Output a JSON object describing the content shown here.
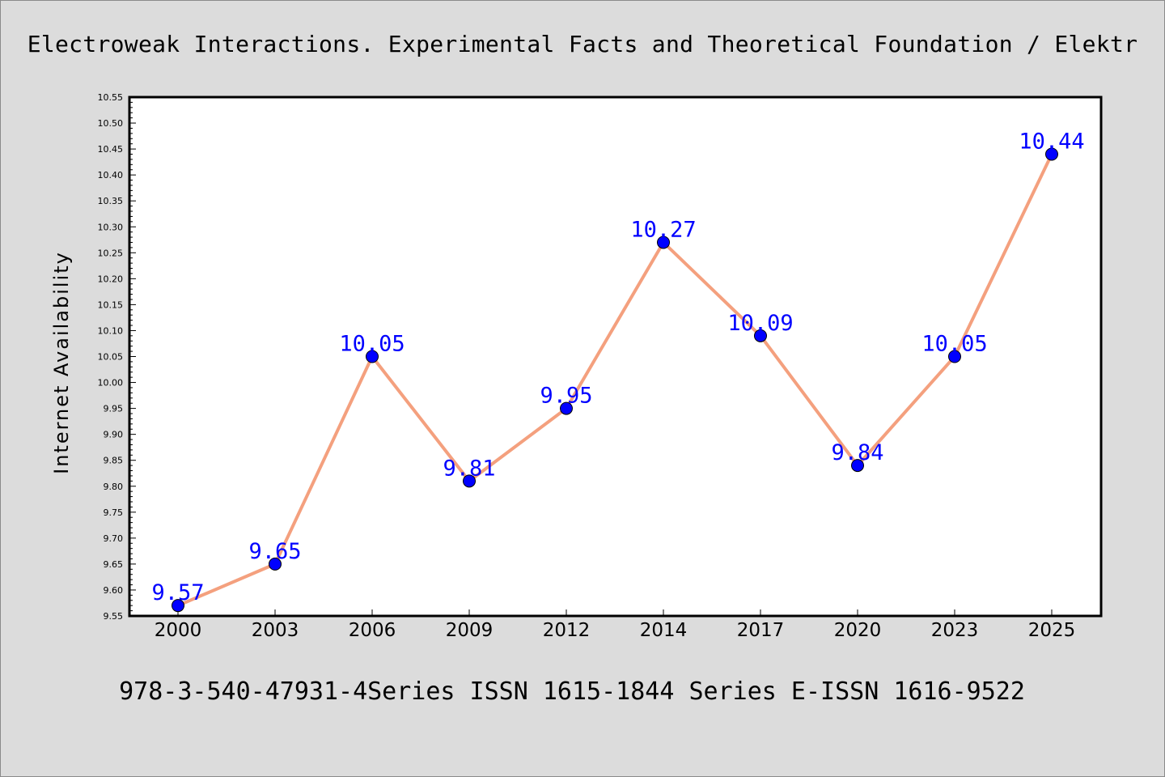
{
  "chart_data": {
    "type": "line",
    "title": "Electroweak Interactions. Experimental Facts and Theoretical Foundation / Elektr",
    "footer": "978-3-540-47931-4Series ISSN 1615-1844 Series E-ISSN 1616-9522",
    "xlabel": "",
    "ylabel": "Internet Availability",
    "categories": [
      "2000",
      "2003",
      "2006",
      "2009",
      "2012",
      "2014",
      "2017",
      "2020",
      "2023",
      "2025"
    ],
    "series": [
      {
        "values": [
          9.57,
          9.65,
          10.05,
          9.81,
          9.95,
          10.27,
          10.09,
          9.84,
          10.05,
          10.44
        ],
        "labels": [
          "9.57",
          "9.65",
          "10.05",
          "9.81",
          "9.95",
          "10.27",
          "10.09",
          "9.84",
          "10.05",
          "10.44"
        ]
      }
    ],
    "ylim": [
      9.55,
      10.55
    ],
    "yticks": [
      "9.55",
      "9.60",
      "9.65",
      "9.70",
      "9.75",
      "9.80",
      "9.85",
      "9.90",
      "9.95",
      "10.00",
      "10.05",
      "10.10",
      "10.15",
      "10.20",
      "10.25",
      "10.30",
      "10.35",
      "10.40",
      "10.45",
      "10.50",
      "10.55"
    ],
    "grid": false,
    "colors": {
      "line": "#f4a07e",
      "marker": "#0000ff",
      "data_label": "#0000ff",
      "background": "#dcdcdc",
      "plot_background": "#ffffff"
    }
  }
}
